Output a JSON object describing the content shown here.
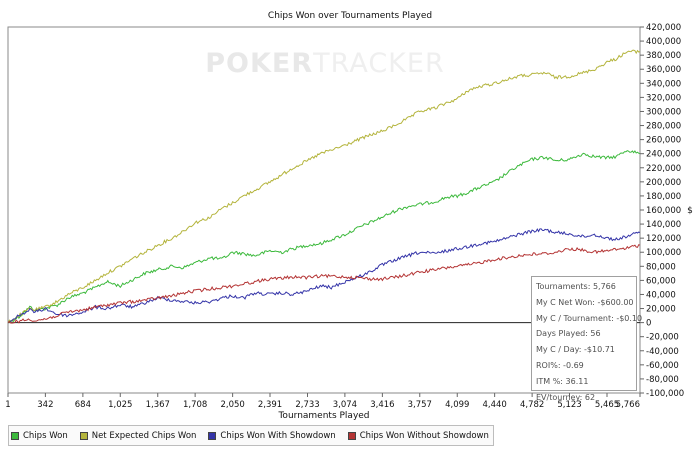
{
  "chart_data": {
    "type": "line",
    "title": "Chips Won over Tournaments Played",
    "xlabel": "Tournaments Played",
    "ylabel": "$",
    "watermark": {
      "left": "POKER",
      "right": "TRACKER"
    },
    "xlim": [
      1,
      5766
    ],
    "ylim": [
      -100000,
      420000
    ],
    "x_ticks": [
      1,
      342,
      684,
      1025,
      1367,
      1708,
      2050,
      2391,
      2733,
      3074,
      3416,
      3757,
      4099,
      4440,
      4782,
      5123,
      5465,
      5766
    ],
    "x_tick_labels": [
      "1",
      "342",
      "684",
      "1,025",
      "1,367",
      "1,708",
      "2,050",
      "2,391",
      "2,733",
      "3,074",
      "3,416",
      "3,757",
      "4,099",
      "4,440",
      "4,782",
      "5,123",
      "5,465",
      "5,766"
    ],
    "y_ticks": [
      -100000,
      -80000,
      -60000,
      -40000,
      -20000,
      0,
      20000,
      40000,
      60000,
      80000,
      100000,
      120000,
      140000,
      160000,
      180000,
      200000,
      220000,
      240000,
      260000,
      280000,
      300000,
      320000,
      340000,
      360000,
      380000,
      400000,
      420000
    ],
    "y_tick_labels": [
      "-100,000",
      "-80,000",
      "-60,000",
      "-40,000",
      "-20,000",
      "0",
      "20,000",
      "40,000",
      "60,000",
      "80,000",
      "100,000",
      "120,000",
      "140,000",
      "160,000",
      "180,000",
      "200,000",
      "220,000",
      "240,000",
      "260,000",
      "280,000",
      "300,000",
      "320,000",
      "340,000",
      "360,000",
      "380,000",
      "400,000",
      "420,000"
    ],
    "grid": false,
    "series": [
      {
        "name": "Chips Won",
        "color": "#3cb93c",
        "x": [
          1,
          100,
          200,
          250,
          342,
          450,
          550,
          684,
          800,
          900,
          1025,
          1150,
          1250,
          1367,
          1500,
          1600,
          1708,
          1850,
          1950,
          2050,
          2150,
          2250,
          2391,
          2500,
          2600,
          2733,
          2850,
          2950,
          3074,
          3200,
          3300,
          3416,
          3550,
          3650,
          3757,
          3900,
          4000,
          4099,
          4200,
          4300,
          4440,
          4550,
          4650,
          4782,
          4900,
          5000,
          5123,
          5250,
          5350,
          5465,
          5550,
          5650,
          5766
        ],
        "y": [
          0,
          8000,
          22000,
          18000,
          20000,
          25000,
          35000,
          42000,
          50000,
          58000,
          52000,
          62000,
          70000,
          75000,
          80000,
          78000,
          85000,
          92000,
          90000,
          100000,
          98000,
          95000,
          102000,
          100000,
          105000,
          110000,
          112000,
          118000,
          125000,
          135000,
          142000,
          150000,
          160000,
          165000,
          168000,
          172000,
          178000,
          180000,
          185000,
          192000,
          200000,
          212000,
          222000,
          232000,
          235000,
          230000,
          232000,
          240000,
          236000,
          234000,
          236000,
          245000,
          240000
        ]
      },
      {
        "name": "Net Expected Chips Won",
        "color": "#b4b43c",
        "x": [
          1,
          100,
          200,
          250,
          342,
          450,
          550,
          684,
          800,
          900,
          1025,
          1150,
          1250,
          1367,
          1500,
          1600,
          1708,
          1850,
          1950,
          2050,
          2150,
          2250,
          2391,
          2500,
          2600,
          2733,
          2850,
          2950,
          3074,
          3200,
          3300,
          3416,
          3550,
          3650,
          3757,
          3900,
          4000,
          4099,
          4200,
          4300,
          4440,
          4550,
          4650,
          4782,
          4900,
          5000,
          5123,
          5250,
          5350,
          5465,
          5550,
          5650,
          5766
        ],
        "y": [
          0,
          10000,
          20000,
          18000,
          22000,
          30000,
          40000,
          50000,
          60000,
          70000,
          80000,
          92000,
          100000,
          110000,
          120000,
          130000,
          142000,
          150000,
          162000,
          170000,
          180000,
          188000,
          200000,
          210000,
          220000,
          230000,
          240000,
          245000,
          252000,
          260000,
          266000,
          272000,
          282000,
          290000,
          300000,
          305000,
          312000,
          318000,
          330000,
          335000,
          340000,
          345000,
          350000,
          352000,
          355000,
          348000,
          350000,
          355000,
          360000,
          370000,
          375000,
          385000,
          385000
        ]
      },
      {
        "name": "Chips Won With Showdown",
        "color": "#3434a8",
        "x": [
          1,
          100,
          200,
          250,
          342,
          450,
          550,
          684,
          800,
          900,
          1025,
          1150,
          1250,
          1367,
          1500,
          1600,
          1708,
          1850,
          1950,
          2050,
          2150,
          2250,
          2391,
          2500,
          2600,
          2733,
          2850,
          2950,
          3074,
          3200,
          3300,
          3416,
          3550,
          3650,
          3757,
          3900,
          4000,
          4099,
          4200,
          4300,
          4440,
          4550,
          4650,
          4782,
          4900,
          5000,
          5123,
          5250,
          5350,
          5465,
          5550,
          5650,
          5766
        ],
        "y": [
          0,
          10000,
          18000,
          15000,
          20000,
          12000,
          10000,
          15000,
          22000,
          20000,
          25000,
          22000,
          28000,
          35000,
          32000,
          30000,
          28000,
          30000,
          35000,
          38000,
          35000,
          42000,
          40000,
          42000,
          40000,
          45000,
          52000,
          50000,
          58000,
          65000,
          72000,
          82000,
          90000,
          95000,
          100000,
          98000,
          102000,
          105000,
          108000,
          112000,
          115000,
          120000,
          125000,
          130000,
          132000,
          128000,
          126000,
          122000,
          125000,
          120000,
          118000,
          123000,
          128000
        ]
      },
      {
        "name": "Chips Won Without Showdown",
        "color": "#b43434",
        "x": [
          1,
          100,
          200,
          250,
          342,
          450,
          550,
          684,
          800,
          900,
          1025,
          1150,
          1250,
          1367,
          1500,
          1600,
          1708,
          1850,
          1950,
          2050,
          2150,
          2250,
          2391,
          2500,
          2600,
          2733,
          2850,
          2950,
          3074,
          3200,
          3300,
          3416,
          3550,
          3650,
          3757,
          3900,
          4000,
          4099,
          4200,
          4300,
          4440,
          4550,
          4650,
          4782,
          4900,
          5000,
          5123,
          5250,
          5350,
          5465,
          5550,
          5650,
          5766
        ],
        "y": [
          0,
          2000,
          5000,
          3000,
          5000,
          10000,
          15000,
          18000,
          22000,
          25000,
          28000,
          30000,
          32000,
          35000,
          38000,
          42000,
          45000,
          48000,
          50000,
          52000,
          55000,
          58000,
          62000,
          63000,
          65000,
          64000,
          66000,
          66000,
          65000,
          64000,
          62000,
          62000,
          65000,
          68000,
          72000,
          75000,
          78000,
          80000,
          82000,
          85000,
          90000,
          92000,
          95000,
          97000,
          98000,
          100000,
          105000,
          103000,
          100000,
          102000,
          104000,
          106000,
          110000
        ]
      }
    ]
  },
  "stats": [
    "Tournaments: 5,766",
    "My C Net Won: -$600.00",
    "My C / Tournament: -$0.10",
    "Days Played: 56",
    "My C / Day: -$10.71",
    "ROI%: -0.69",
    "ITM %: 36.11",
    "EV/tourney: 62"
  ]
}
